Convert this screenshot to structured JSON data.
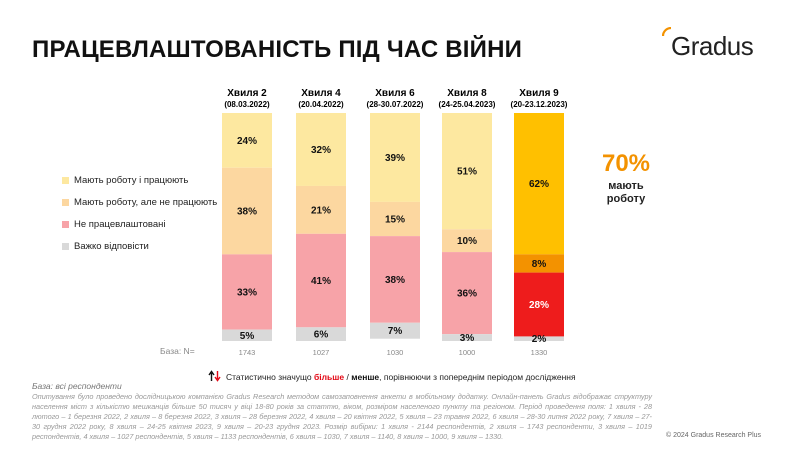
{
  "title": "ПРАЦЕВЛАШТОВАНІСТЬ ПІД ЧАС ВІЙНИ",
  "logo_text": "Gradus",
  "chart_data": {
    "type": "bar",
    "stacked": true,
    "unit": "%",
    "categories": [
      {
        "name": "Хвиля 2",
        "date": "(08.03.2022)",
        "n": "1743"
      },
      {
        "name": "Хвиля 4",
        "date": "(20.04.2022)",
        "n": "1027"
      },
      {
        "name": "Хвиля 6",
        "date": "(28-30.07.2022)",
        "n": "1030"
      },
      {
        "name": "Хвиля 8",
        "date": "(24-25.04.2023)",
        "n": "1000"
      },
      {
        "name": "Хвиля 9",
        "date": "(20-23.12.2023)",
        "n": "1330"
      }
    ],
    "series": [
      {
        "name": "Мають роботу і працюють",
        "values": [
          24,
          32,
          39,
          51,
          62
        ],
        "color": "#fde8a0",
        "highlight_color": "#ffc000"
      },
      {
        "name": "Мають роботу, але не працюють",
        "values": [
          38,
          21,
          15,
          10,
          8
        ],
        "color": "#fcd7a0",
        "highlight_color": "#f39200"
      },
      {
        "name": "Не працевлаштовані",
        "values": [
          33,
          41,
          38,
          36,
          28
        ],
        "color": "#f7a3a8",
        "highlight_color": "#ee1c1c"
      },
      {
        "name": "Важко відповісти",
        "values": [
          5,
          6,
          7,
          3,
          2
        ],
        "color": "#d9d9d9",
        "highlight_color": "#d9d9d9"
      }
    ],
    "highlight_index": 4,
    "ylim": [
      0,
      100
    ],
    "base_label": "База: N="
  },
  "highlight": {
    "value": "70%",
    "label": "мають роботу"
  },
  "significance": {
    "prefix": "Статистично значущо ",
    "more": "більше",
    "slash": " / ",
    "less": "менше",
    "suffix": ", порівнюючи з попереднім періодом дослідження"
  },
  "respondents": "База: всі респонденти",
  "methodology": "Опитування було проведено дослідницькою компанією Gradus Research методом самозаповнення анкети в мобільному додатку. Онлайн-панель Gradus відображає структуру населення міст з кількістю мешканців більше 50 тисяч у віці 18-80 років за статтю, віком, розміром населеного пункту та регіоном. Період проведення поля: 1 хвиля - 28 лютого – 1 березня 2022, 2 хвиля – 8 березня 2022, 3 хвиля – 28 березня 2022, 4 хвиля – 20 квітня 2022, 5 хвиля – 23 травня 2022, 6 хвиля – 28-30 липня 2022 року, 7 хвиля – 27-30 грудня 2022 року, 8 хвиля – 24-25 квітня 2023, 9 хвиля – 20-23 грудня 2023. Розмір вибірки: 1 хвиля - 2144 респондентів, 2 хвиля – 1743 респонденти, 3 хвиля – 1019 респондентів, 4 хвиля – 1027 респондентів, 5 хвиля – 1133 респондентів, 6 хвиля – 1030, 7 хвиля – 1140, 8 хвиля – 1000, 9 хвиля – 1330.",
  "copyright": "© 2024 Gradus Research Plus"
}
